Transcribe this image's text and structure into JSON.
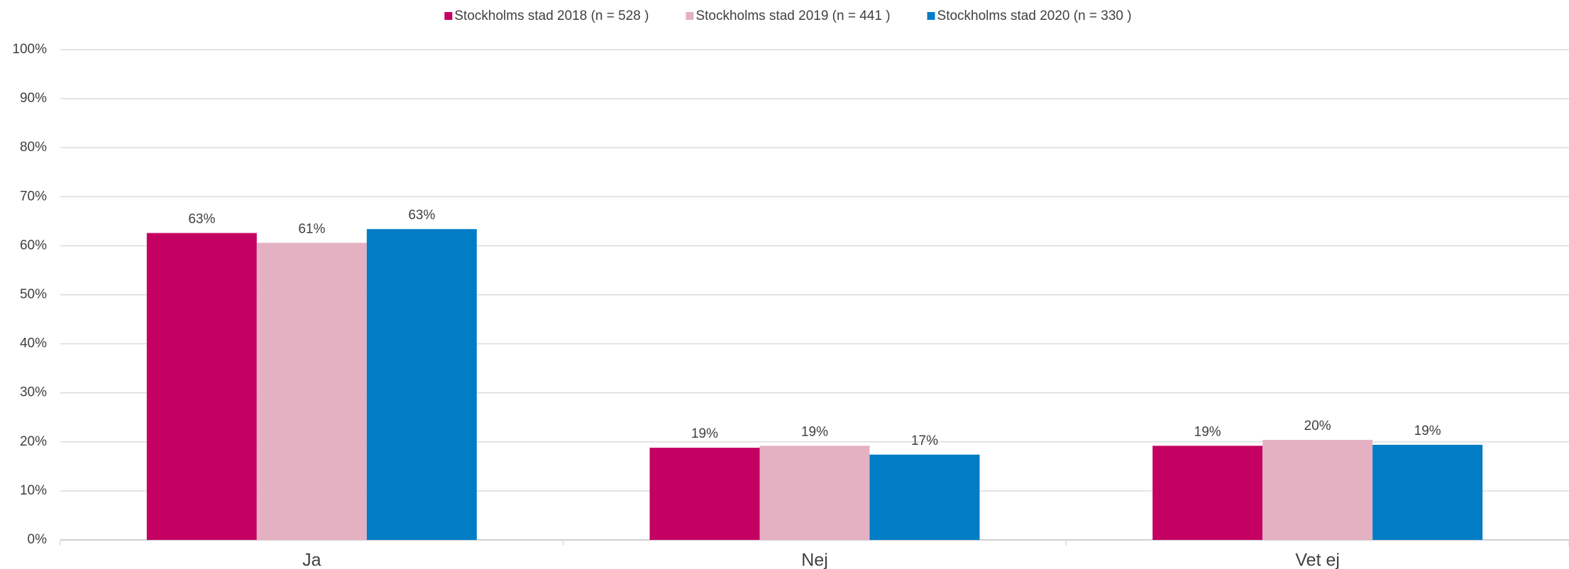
{
  "chart_data": {
    "type": "bar",
    "categories": [
      "Ja",
      "Nej",
      "Vet ej"
    ],
    "series": [
      {
        "name": "Stockholms stad 2018 (n = 528 )",
        "color": "#c40062",
        "values": [
          62.6,
          18.8,
          19.2
        ],
        "value_labels": [
          "63%",
          "19%",
          "19%"
        ]
      },
      {
        "name": "Stockholms stad 2019 (n = 441 )",
        "color": "#e4b1c3",
        "values": [
          60.6,
          19.2,
          20.4
        ],
        "value_labels": [
          "61%",
          "19%",
          "20%"
        ]
      },
      {
        "name": "Stockholms stad 2020 (n = 330 )",
        "color": "#007dc5",
        "values": [
          63.4,
          17.4,
          19.4
        ],
        "value_labels": [
          "63%",
          "17%",
          "19%"
        ]
      }
    ],
    "ylim": [
      0,
      100
    ],
    "yticks": [
      {
        "value": 0,
        "label": "0%"
      },
      {
        "value": 10,
        "label": "10%"
      },
      {
        "value": 20,
        "label": "20%"
      },
      {
        "value": 30,
        "label": "30%"
      },
      {
        "value": 40,
        "label": "40%"
      },
      {
        "value": 50,
        "label": "50%"
      },
      {
        "value": 60,
        "label": "60%"
      },
      {
        "value": 70,
        "label": "70%"
      },
      {
        "value": 80,
        "label": "80%"
      },
      {
        "value": 90,
        "label": "90%"
      },
      {
        "value": 100,
        "label": "100%"
      }
    ],
    "grid": true,
    "legend": "top"
  }
}
